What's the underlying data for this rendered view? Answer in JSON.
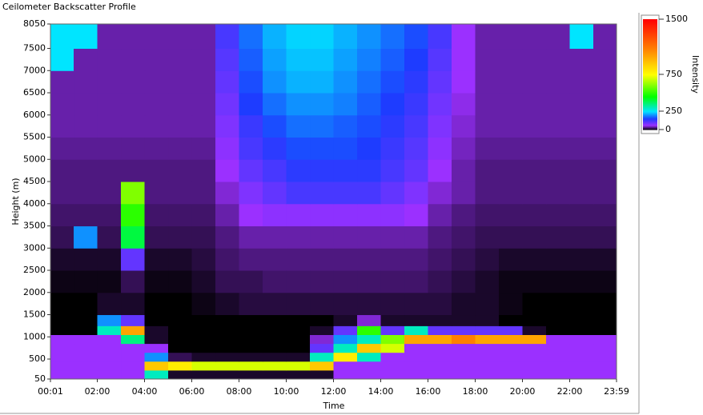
{
  "chart_data": {
    "type": "heatmap",
    "title": "Ceilometer Backscatter Profile",
    "x_label": "Time",
    "y_label": "Height (m)",
    "colorbar_label": "Intensity",
    "xlim": [
      0.0167,
      23.983
    ],
    "xticks": [
      {
        "value": 0.0167,
        "label": "00:01"
      },
      {
        "value": 2,
        "label": "02:00"
      },
      {
        "value": 4,
        "label": "04:00"
      },
      {
        "value": 6,
        "label": "06:00"
      },
      {
        "value": 8,
        "label": "08:00"
      },
      {
        "value": 10,
        "label": "10:00"
      },
      {
        "value": 12,
        "label": "12:00"
      },
      {
        "value": 14,
        "label": "14:00"
      },
      {
        "value": 16,
        "label": "16:00"
      },
      {
        "value": 18,
        "label": "18:00"
      },
      {
        "value": 20,
        "label": "20:00"
      },
      {
        "value": 22,
        "label": "22:00"
      },
      {
        "value": 23.983,
        "label": "23:59"
      }
    ],
    "ylim": [
      50,
      8050
    ],
    "yticks": [
      50,
      500,
      1000,
      1500,
      2000,
      2500,
      3000,
      3500,
      4000,
      4500,
      5000,
      5500,
      6000,
      6500,
      7000,
      7500,
      8050
    ],
    "clim": [
      0,
      1500
    ],
    "cticks": [
      0,
      250,
      750,
      1500
    ],
    "colorscale": [
      [
        0,
        "#000000"
      ],
      [
        60,
        "#9b30ff"
      ],
      [
        150,
        "#1e3cff"
      ],
      [
        250,
        "#00e5ff"
      ],
      [
        450,
        "#00ff00"
      ],
      [
        750,
        "#ffff00"
      ],
      [
        1100,
        "#ff8000"
      ],
      [
        1500,
        "#ff0000"
      ]
    ],
    "xbins": [
      0,
      1,
      2,
      3,
      4,
      5,
      6,
      7,
      8,
      9,
      10,
      11,
      12,
      13,
      14,
      15,
      16,
      17,
      18,
      19,
      20,
      21,
      22,
      23,
      24
    ],
    "ybins": [
      50,
      250,
      450,
      650,
      850,
      1050,
      1250,
      1500,
      2000,
      2500,
      3000,
      3500,
      4000,
      4500,
      5000,
      5500,
      6000,
      6500,
      7000,
      7500,
      8050
    ],
    "z": [
      [
        60,
        60,
        60,
        60,
        300,
        10,
        10,
        10,
        10,
        10,
        10,
        10,
        60,
        60,
        60,
        60,
        60,
        60,
        60,
        60,
        60,
        60,
        60,
        60
      ],
      [
        60,
        60,
        60,
        60,
        900,
        800,
        700,
        700,
        700,
        700,
        700,
        900,
        60,
        60,
        60,
        60,
        60,
        60,
        60,
        60,
        60,
        60,
        60,
        60
      ],
      [
        60,
        60,
        60,
        60,
        200,
        20,
        10,
        10,
        10,
        10,
        10,
        300,
        800,
        300,
        60,
        60,
        60,
        60,
        60,
        60,
        60,
        60,
        60,
        60
      ],
      [
        60,
        60,
        60,
        60,
        60,
        0,
        0,
        0,
        0,
        0,
        0,
        100,
        300,
        900,
        700,
        60,
        60,
        60,
        60,
        60,
        60,
        60,
        60,
        60
      ],
      [
        60,
        60,
        60,
        350,
        10,
        0,
        0,
        0,
        0,
        0,
        0,
        50,
        200,
        300,
        600,
        1000,
        1000,
        1100,
        1000,
        1000,
        1000,
        60,
        60,
        60
      ],
      [
        0,
        0,
        300,
        1000,
        10,
        0,
        0,
        0,
        0,
        0,
        0,
        10,
        100,
        500,
        100,
        300,
        100,
        100,
        100,
        100,
        10,
        0,
        0,
        0
      ],
      [
        0,
        0,
        200,
        100,
        0,
        0,
        0,
        0,
        0,
        0,
        0,
        0,
        10,
        50,
        10,
        10,
        10,
        10,
        10,
        0,
        0,
        0,
        0,
        0
      ],
      [
        0,
        0,
        10,
        10,
        0,
        0,
        5,
        10,
        15,
        15,
        15,
        15,
        15,
        15,
        15,
        15,
        15,
        10,
        10,
        5,
        0,
        0,
        0,
        0
      ],
      [
        5,
        5,
        5,
        20,
        5,
        5,
        10,
        20,
        20,
        25,
        25,
        25,
        25,
        25,
        25,
        25,
        20,
        15,
        10,
        5,
        5,
        5,
        5,
        5
      ],
      [
        10,
        10,
        10,
        100,
        10,
        10,
        15,
        25,
        30,
        30,
        30,
        30,
        30,
        30,
        30,
        30,
        25,
        20,
        15,
        10,
        10,
        10,
        10,
        10
      ],
      [
        20,
        200,
        20,
        400,
        20,
        20,
        20,
        30,
        40,
        40,
        40,
        40,
        40,
        40,
        40,
        40,
        30,
        25,
        20,
        20,
        20,
        20,
        20,
        20
      ],
      [
        25,
        25,
        25,
        500,
        25,
        25,
        25,
        40,
        60,
        70,
        70,
        70,
        70,
        70,
        70,
        60,
        40,
        30,
        25,
        25,
        25,
        25,
        25,
        25
      ],
      [
        30,
        30,
        30,
        600,
        30,
        30,
        30,
        50,
        80,
        100,
        120,
        120,
        120,
        120,
        100,
        80,
        50,
        40,
        30,
        30,
        30,
        30,
        30,
        30
      ],
      [
        30,
        30,
        30,
        30,
        30,
        30,
        30,
        60,
        100,
        120,
        140,
        140,
        140,
        140,
        120,
        100,
        60,
        40,
        30,
        30,
        30,
        30,
        30,
        30
      ],
      [
        35,
        35,
        35,
        35,
        35,
        35,
        35,
        70,
        120,
        140,
        160,
        160,
        160,
        150,
        130,
        110,
        70,
        45,
        35,
        35,
        35,
        35,
        35,
        35
      ],
      [
        40,
        40,
        40,
        40,
        40,
        40,
        40,
        80,
        130,
        160,
        180,
        180,
        170,
        160,
        140,
        120,
        80,
        50,
        40,
        40,
        40,
        40,
        40,
        40
      ],
      [
        40,
        40,
        40,
        40,
        40,
        40,
        40,
        90,
        150,
        180,
        200,
        200,
        190,
        170,
        150,
        130,
        90,
        55,
        40,
        40,
        40,
        40,
        40,
        40
      ],
      [
        40,
        40,
        40,
        40,
        40,
        40,
        40,
        100,
        160,
        200,
        220,
        220,
        200,
        180,
        160,
        140,
        100,
        60,
        40,
        40,
        40,
        40,
        40,
        40
      ],
      [
        250,
        40,
        40,
        40,
        40,
        40,
        40,
        110,
        170,
        210,
        230,
        230,
        210,
        190,
        170,
        150,
        110,
        60,
        40,
        40,
        40,
        40,
        40,
        40
      ],
      [
        250,
        250,
        40,
        40,
        40,
        40,
        40,
        120,
        180,
        220,
        240,
        240,
        220,
        200,
        180,
        160,
        120,
        60,
        40,
        40,
        40,
        40,
        250,
        40
      ]
    ]
  }
}
